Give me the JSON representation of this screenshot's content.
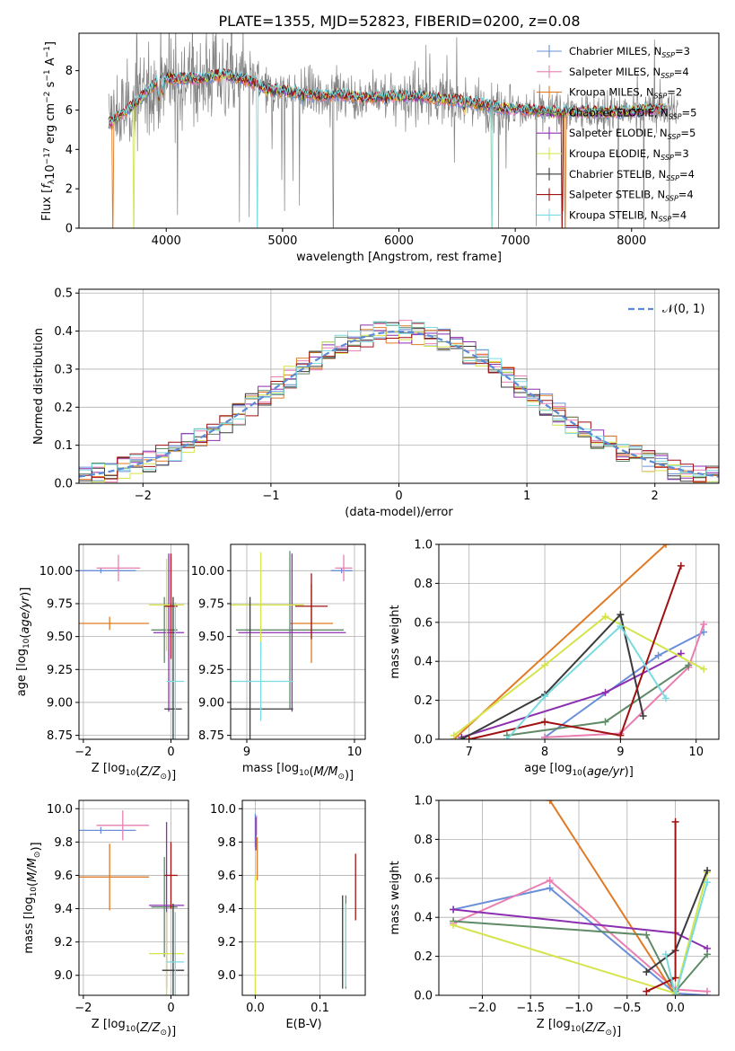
{
  "figure": {
    "title": "PLATE=1355, MJD=52823, FIBERID=0200, z=0.08"
  },
  "colors": {
    "Chabrier MILES": "#6a8fd8",
    "Salpeter MILES": "#e87fb0",
    "Kroupa MILES": "#e07a25",
    "Chabrier ELODIE": "#5e8a66",
    "Salpeter ELODIE": "#8b2fb0",
    "Kroupa ELODIE": "#d4e44a",
    "Chabrier STELIB": "#3a3a3a",
    "Salpeter STELIB": "#a01010",
    "Kroupa STELIB": "#7adbe0",
    "data": "#808080",
    "normal": "#5b8ad6"
  },
  "chart_data": [
    {
      "id": "spectrum",
      "type": "line",
      "xlabel": "wavelength [Angstrom, rest frame]",
      "ylabel": "Flux [f_λ 10^-17 erg cm^-2 s^-1 A^-1]",
      "xlim": [
        3250,
        8750
      ],
      "ylim": [
        0,
        9.9
      ],
      "xticks": [
        4000,
        5000,
        6000,
        7000,
        8000
      ],
      "yticks": [
        0,
        2,
        4,
        6,
        8
      ],
      "grid": false,
      "legend_position": "top-right",
      "legend": [
        {
          "model": "Chabrier MILES",
          "label": "Chabrier MILES, N",
          "sub": "SSP",
          "n": "=3"
        },
        {
          "model": "Salpeter MILES",
          "label": "Salpeter MILES, N",
          "sub": "SSP",
          "n": "=4"
        },
        {
          "model": "Kroupa MILES",
          "label": "Kroupa MILES, N",
          "sub": "SSP",
          "n": "=2"
        },
        {
          "model": "Chabrier ELODIE",
          "label": "Chabrier ELODIE, N",
          "sub": "SSP",
          "n": "=5"
        },
        {
          "model": "Salpeter ELODIE",
          "label": "Salpeter ELODIE, N",
          "sub": "SSP",
          "n": "=5"
        },
        {
          "model": "Kroupa ELODIE",
          "label": "Kroupa ELODIE, N",
          "sub": "SSP",
          "n": "=3"
        },
        {
          "model": "Chabrier STELIB",
          "label": "Chabrier STELIB, N",
          "sub": "SSP",
          "n": "=4"
        },
        {
          "model": "Salpeter STELIB",
          "label": "Salpeter STELIB, N",
          "sub": "SSP",
          "n": "=4"
        },
        {
          "model": "Kroupa STELIB",
          "label": "Kroupa STELIB, N",
          "sub": "SSP",
          "n": "=4"
        }
      ],
      "continuum": [
        [
          3500,
          5.3
        ],
        [
          3650,
          5.9
        ],
        [
          3800,
          6.7
        ],
        [
          3950,
          7.6
        ],
        [
          4100,
          7.6
        ],
        [
          4300,
          7.6
        ],
        [
          4500,
          7.8
        ],
        [
          4700,
          7.5
        ],
        [
          4900,
          7.0
        ],
        [
          5100,
          6.9
        ],
        [
          5300,
          6.7
        ],
        [
          5500,
          6.8
        ],
        [
          5700,
          6.6
        ],
        [
          5900,
          6.7
        ],
        [
          6100,
          6.7
        ],
        [
          6300,
          6.6
        ],
        [
          6500,
          6.5
        ],
        [
          6700,
          6.3
        ],
        [
          6900,
          6.1
        ],
        [
          7100,
          6.0
        ],
        [
          7300,
          5.9
        ],
        [
          7500,
          5.9
        ],
        [
          7700,
          5.9
        ],
        [
          7900,
          5.9
        ],
        [
          8100,
          6.0
        ],
        [
          8300,
          6.1
        ],
        [
          8400,
          6.0
        ]
      ],
      "absorption": [
        [
          3934,
          3.9
        ],
        [
          3969,
          4.5
        ],
        [
          4102,
          6.5
        ],
        [
          4340,
          6.6
        ],
        [
          4861,
          6.4
        ],
        [
          5175,
          6.3
        ],
        [
          5890,
          6.3
        ],
        [
          6563,
          5.5
        ]
      ]
    },
    {
      "id": "residual-histogram",
      "type": "histogram",
      "xlabel": "(data-model)/error",
      "ylabel": "Normed distribution",
      "xlim": [
        -2.5,
        2.5
      ],
      "ylim": [
        0,
        0.51
      ],
      "xticks": [
        -2,
        -1,
        0,
        1,
        2
      ],
      "yticks": [
        0.0,
        0.1,
        0.2,
        0.3,
        0.4,
        0.5
      ],
      "grid": true,
      "bin_width": 0.1,
      "legend_position": "top-right",
      "reference_curve": {
        "label": "𝒩(0, 1)",
        "mean": 0,
        "sigma": 1
      }
    },
    {
      "id": "age-vs-metallicity",
      "type": "errorbar",
      "xlabel": "Z [log10(Z/Z☉)]",
      "ylabel": "age  [log10(age/yr)]",
      "xlim": [
        -2.1,
        0.4
      ],
      "ylim": [
        8.72,
        10.2
      ],
      "xticks": [
        -2,
        0
      ],
      "yticks": [
        8.75,
        9.0,
        9.25,
        9.5,
        9.75,
        10.0
      ],
      "grid": true,
      "points": [
        {
          "model": "Chabrier MILES",
          "x": -1.6,
          "xerr": 0.8,
          "y": 10.0,
          "yerr": 0.02
        },
        {
          "model": "Salpeter MILES",
          "x": -1.2,
          "xerr": 0.5,
          "y": 10.02,
          "yerr": 0.1
        },
        {
          "model": "Kroupa MILES",
          "x": -1.4,
          "xerr": 0.9,
          "y": 9.6,
          "yerr": 0.05
        },
        {
          "model": "Chabrier ELODIE",
          "x": -0.15,
          "xerr": 0.3,
          "y": 9.55,
          "yerr": 0.25
        },
        {
          "model": "Salpeter ELODIE",
          "x": -0.05,
          "xerr": 0.35,
          "y": 9.53,
          "yerr": 0.6
        },
        {
          "model": "Kroupa ELODIE",
          "x": -0.1,
          "xerr": 0.4,
          "y": 9.74,
          "yerr": 0.35
        },
        {
          "model": "Chabrier STELIB",
          "x": 0.05,
          "xerr": 0.2,
          "y": 8.95,
          "yerr": 0.85
        },
        {
          "model": "Salpeter STELIB",
          "x": 0.0,
          "xerr": 0.15,
          "y": 9.73,
          "yerr": 0.4
        },
        {
          "model": "Kroupa STELIB",
          "x": 0.1,
          "xerr": 0.2,
          "y": 9.16,
          "yerr": 0.6
        }
      ]
    },
    {
      "id": "age-vs-mass",
      "type": "errorbar",
      "xlabel": "mass [log10(M/M☉)]",
      "ylabel": "",
      "xlim": [
        8.85,
        10.1
      ],
      "ylim": [
        8.72,
        10.2
      ],
      "xticks": [
        9,
        10
      ],
      "yticks": [
        8.75,
        9.0,
        9.25,
        9.5,
        9.75,
        10.0
      ],
      "grid": true,
      "points": [
        {
          "model": "Chabrier MILES",
          "x": 9.88,
          "xerr": 0.1,
          "y": 10.0,
          "yerr": 0.02
        },
        {
          "model": "Salpeter MILES",
          "x": 9.9,
          "xerr": 0.08,
          "y": 10.02,
          "yerr": 0.1
        },
        {
          "model": "Kroupa MILES",
          "x": 9.6,
          "xerr": 0.2,
          "y": 9.6,
          "yerr": 0.3
        },
        {
          "model": "Chabrier ELODIE",
          "x": 9.4,
          "xerr": 0.5,
          "y": 9.55,
          "yerr": 0.6
        },
        {
          "model": "Salpeter ELODIE",
          "x": 9.42,
          "xerr": 0.5,
          "y": 9.53,
          "yerr": 0.6
        },
        {
          "model": "Kroupa ELODIE",
          "x": 9.13,
          "xerr": 0.4,
          "y": 9.74,
          "yerr": 0.4
        },
        {
          "model": "Chabrier STELIB",
          "x": 9.03,
          "xerr": 0.4,
          "y": 8.95,
          "yerr": 0.85
        },
        {
          "model": "Salpeter STELIB",
          "x": 9.6,
          "xerr": 0.15,
          "y": 9.73,
          "yerr": 0.25
        },
        {
          "model": "Kroupa STELIB",
          "x": 9.13,
          "xerr": 0.3,
          "y": 9.16,
          "yerr": 0.3
        }
      ]
    },
    {
      "id": "mass-weight-vs-age",
      "type": "line",
      "xlabel": "age  [log10(age/yr)]",
      "ylabel": "mass weight",
      "xlim": [
        6.6,
        10.3
      ],
      "ylim": [
        0,
        1.0
      ],
      "xticks": [
        7,
        8,
        9,
        10
      ],
      "yticks": [
        0.0,
        0.2,
        0.4,
        0.6,
        0.8,
        1.0
      ],
      "grid": true,
      "series": [
        {
          "model": "Chabrier MILES",
          "x": [
            8.0,
            9.5,
            10.1
          ],
          "y": [
            0.01,
            0.43,
            0.55
          ]
        },
        {
          "model": "Salpeter MILES",
          "x": [
            8.0,
            9.0,
            9.9,
            10.1
          ],
          "y": [
            0.01,
            0.03,
            0.37,
            0.59
          ]
        },
        {
          "model": "Kroupa MILES",
          "x": [
            6.8,
            9.6
          ],
          "y": [
            0.0,
            1.0
          ]
        },
        {
          "model": "Chabrier ELODIE",
          "x": [
            7.5,
            8.8,
            9.9
          ],
          "y": [
            0.02,
            0.09,
            0.38
          ]
        },
        {
          "model": "Salpeter ELODIE",
          "x": [
            6.9,
            8.8,
            9.8
          ],
          "y": [
            0.01,
            0.24,
            0.44
          ]
        },
        {
          "model": "Kroupa ELODIE",
          "x": [
            6.8,
            8.0,
            8.8,
            10.1
          ],
          "y": [
            0.02,
            0.38,
            0.63,
            0.36
          ]
        },
        {
          "model": "Chabrier STELIB",
          "x": [
            6.9,
            8.0,
            9.0,
            9.3
          ],
          "y": [
            0.0,
            0.23,
            0.64,
            0.12
          ]
        },
        {
          "model": "Salpeter STELIB",
          "x": [
            7.0,
            8.0,
            9.0,
            9.8
          ],
          "y": [
            0.0,
            0.09,
            0.02,
            0.89
          ]
        },
        {
          "model": "Kroupa STELIB",
          "x": [
            7.5,
            8.0,
            9.0,
            9.6
          ],
          "y": [
            0.0,
            0.22,
            0.58,
            0.21
          ]
        }
      ]
    },
    {
      "id": "mass-vs-metallicity",
      "type": "errorbar",
      "xlabel": "Z [log10(Z/Z☉)]",
      "ylabel": "mass [log10(M/M☉)]",
      "xlim": [
        -2.1,
        0.4
      ],
      "ylim": [
        8.88,
        10.05
      ],
      "xticks": [
        -2,
        0
      ],
      "yticks": [
        9.0,
        9.2,
        9.4,
        9.6,
        9.8,
        10.0
      ],
      "grid": true,
      "points": [
        {
          "model": "Chabrier MILES",
          "x": -1.6,
          "xerr": 0.8,
          "y": 9.87,
          "yerr": 0.02
        },
        {
          "model": "Salpeter MILES",
          "x": -1.1,
          "xerr": 0.6,
          "y": 9.9,
          "yerr": 0.09
        },
        {
          "model": "Kroupa MILES",
          "x": -1.4,
          "xerr": 0.9,
          "y": 9.59,
          "yerr": 0.2
        },
        {
          "model": "Chabrier ELODIE",
          "x": -0.15,
          "xerr": 0.3,
          "y": 9.41,
          "yerr": 0.3
        },
        {
          "model": "Salpeter ELODIE",
          "x": -0.1,
          "xerr": 0.4,
          "y": 9.42,
          "yerr": 0.5
        },
        {
          "model": "Kroupa ELODIE",
          "x": -0.1,
          "xerr": 0.4,
          "y": 9.13,
          "yerr": 0.25
        },
        {
          "model": "Chabrier STELIB",
          "x": 0.05,
          "xerr": 0.25,
          "y": 9.03,
          "yerr": 0.4
        },
        {
          "model": "Salpeter STELIB",
          "x": 0.0,
          "xerr": 0.15,
          "y": 9.6,
          "yerr": 0.2
        },
        {
          "model": "Kroupa STELIB",
          "x": 0.1,
          "xerr": 0.2,
          "y": 9.08,
          "yerr": 0.3
        }
      ]
    },
    {
      "id": "mass-vs-ebv",
      "type": "errorbar",
      "xlabel": "E(B-V)",
      "ylabel": "",
      "xlim": [
        -0.02,
        0.17
      ],
      "ylim": [
        8.88,
        10.05
      ],
      "xticks": [
        0.0,
        0.1
      ],
      "yticks": [
        9.0,
        9.2,
        9.4,
        9.6,
        9.8,
        10.0
      ],
      "grid": true,
      "points": [
        {
          "model": "Chabrier MILES",
          "x": 0.0,
          "xerr": 0.0,
          "y": 9.87,
          "yerr": 0.1
        },
        {
          "model": "Salpeter MILES",
          "x": 0.002,
          "xerr": 0.0,
          "y": 9.9,
          "yerr": 0.06
        },
        {
          "model": "Kroupa MILES",
          "x": 0.003,
          "xerr": 0.0,
          "y": 9.7,
          "yerr": 0.13
        },
        {
          "model": "Chabrier ELODIE",
          "x": 0.14,
          "xerr": 0.0,
          "y": 9.2,
          "yerr": 0.28
        },
        {
          "model": "Salpeter ELODIE",
          "x": 0.001,
          "xerr": 0.0,
          "y": 9.85,
          "yerr": 0.1
        },
        {
          "model": "Kroupa ELODIE",
          "x": 0.0,
          "xerr": 0.0,
          "y": 9.1,
          "yerr": 0.5
        },
        {
          "model": "Chabrier STELIB",
          "x": 0.135,
          "xerr": 0.0,
          "y": 9.2,
          "yerr": 0.28
        },
        {
          "model": "Salpeter STELIB",
          "x": 0.155,
          "xerr": 0.0,
          "y": 9.53,
          "yerr": 0.2
        },
        {
          "model": "Kroupa STELIB",
          "x": 0.14,
          "xerr": 0.0,
          "y": 9.18,
          "yerr": 0.25
        }
      ]
    },
    {
      "id": "mass-weight-vs-metallicity",
      "type": "line",
      "xlabel": "Z [log10(Z/Z☉)]",
      "ylabel": "mass weight",
      "xlim": [
        -2.45,
        0.45
      ],
      "ylim": [
        0,
        1.0
      ],
      "xticks": [
        -2.0,
        -1.5,
        -1.0,
        -0.5,
        0.0
      ],
      "yticks": [
        0.0,
        0.2,
        0.4,
        0.6,
        0.8,
        1.0
      ],
      "grid": true,
      "series": [
        {
          "model": "Chabrier MILES",
          "x": [
            -2.3,
            -1.3,
            0.0,
            0.33
          ],
          "y": [
            0.44,
            0.55,
            0.01,
            0.0
          ]
        },
        {
          "model": "Salpeter MILES",
          "x": [
            -2.3,
            -1.3,
            0.0,
            0.33
          ],
          "y": [
            0.37,
            0.59,
            0.03,
            0.02
          ]
        },
        {
          "model": "Kroupa MILES",
          "x": [
            -1.3,
            0.0
          ],
          "y": [
            1.0,
            0.0
          ]
        },
        {
          "model": "Chabrier ELODIE",
          "x": [
            -2.3,
            -0.3,
            0.0,
            0.33
          ],
          "y": [
            0.38,
            0.31,
            0.02,
            0.21
          ]
        },
        {
          "model": "Salpeter ELODIE",
          "x": [
            -2.3,
            0.0,
            0.33
          ],
          "y": [
            0.44,
            0.32,
            0.24
          ]
        },
        {
          "model": "Kroupa ELODIE",
          "x": [
            -2.3,
            0.0,
            0.33
          ],
          "y": [
            0.36,
            0.01,
            0.63
          ]
        },
        {
          "model": "Chabrier STELIB",
          "x": [
            -0.3,
            0.0,
            0.33
          ],
          "y": [
            0.12,
            0.23,
            0.64
          ]
        },
        {
          "model": "Salpeter STELIB",
          "x": [
            -0.3,
            0.0,
            0.0
          ],
          "y": [
            0.02,
            0.09,
            0.89
          ]
        },
        {
          "model": "Kroupa STELIB",
          "x": [
            -0.1,
            0.0,
            0.33
          ],
          "y": [
            0.21,
            0.0,
            0.58
          ]
        }
      ]
    }
  ]
}
